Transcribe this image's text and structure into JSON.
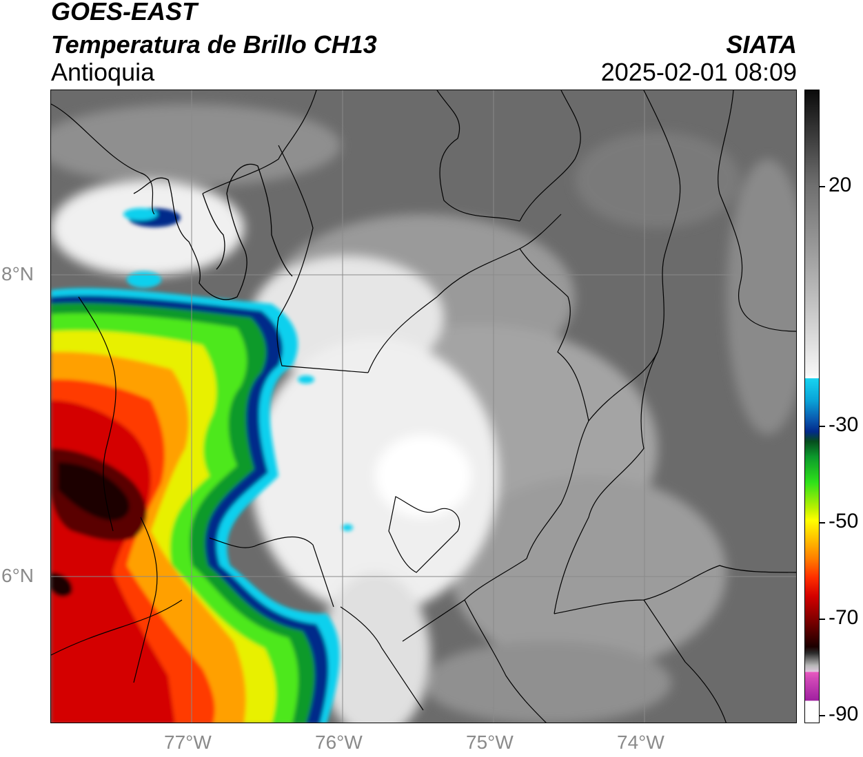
{
  "header": {
    "line1": "GOES-EAST",
    "line2": "Temperatura de Brillo CH13",
    "line3": "Antioquia",
    "source": "SIATA",
    "datetime": "2025-02-01 08:09"
  },
  "axes": {
    "lat_labels": [
      "8°N",
      "6°N"
    ],
    "lon_labels": [
      "77°W",
      "76°W",
      "75°W",
      "74°W"
    ]
  },
  "colorbar": {
    "ticks": [
      "20",
      "-30",
      "-50",
      "-70",
      "-90"
    ],
    "colors": {
      "warm_gray": "#6e6e6e",
      "cold_cyan": "#17d3f0",
      "deep_blue": "#022a8a",
      "green": "#2ee11a",
      "yellow": "#ffff00",
      "red": "#d40000",
      "dark_red": "#1b0000",
      "magenta": "#a020a0"
    }
  }
}
